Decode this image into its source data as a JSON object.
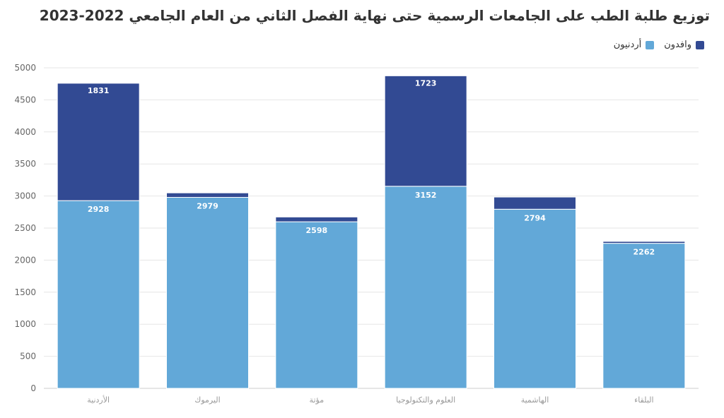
{
  "chart_data": {
    "type": "bar",
    "stacked": true,
    "title": "توزيع طلبة الطب على الجامعات الرسمية حتى نهاية الفصل الثاني من العام الجامعي 2022-2023",
    "categories": [
      "الأردنية",
      "اليرموك",
      "مؤتة",
      "العلوم والتكنولوجيا",
      "الهاشمية",
      "البلقاء"
    ],
    "series": [
      {
        "name": "أردنيون",
        "color": "#62a8d8",
        "values": [
          2928,
          2979,
          2598,
          3152,
          2794,
          2262
        ]
      },
      {
        "name": "وافدون",
        "color": "#324a93",
        "values": [
          1831,
          70,
          75,
          1723,
          190,
          30
        ]
      }
    ],
    "data_labels": {
      "أردنيون": [
        "2928",
        "2979",
        "2598",
        "3152",
        "2794",
        "2262"
      ],
      "وافدون": [
        "1831",
        "",
        "",
        "1723",
        "",
        ""
      ]
    },
    "ylim": [
      0,
      5000
    ],
    "yticks": [
      0,
      500,
      1000,
      1500,
      2000,
      2500,
      3000,
      3500,
      4000,
      4500,
      5000
    ],
    "grid": true,
    "legend_position": "top-right"
  }
}
